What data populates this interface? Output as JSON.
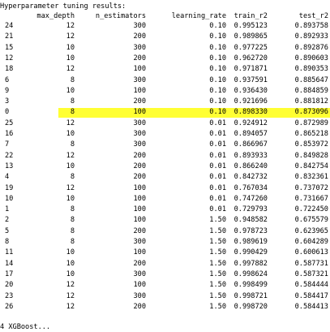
{
  "title": "Hyperparameter tuning results:",
  "columns": [
    "max_depth",
    "n_estimators",
    "learning_rate",
    "train_r2",
    "test_r2"
  ],
  "highlight_index": "0",
  "rows": [
    [
      "24",
      "12",
      "300",
      "0.10",
      "0.995123",
      "0.893758"
    ],
    [
      "21",
      "12",
      "200",
      "0.10",
      "0.989865",
      "0.892933"
    ],
    [
      "15",
      "10",
      "300",
      "0.10",
      "0.977225",
      "0.892876"
    ],
    [
      "12",
      "10",
      "200",
      "0.10",
      "0.962720",
      "0.890603"
    ],
    [
      "18",
      "12",
      "100",
      "0.10",
      "0.971871",
      "0.890353"
    ],
    [
      "6",
      "8",
      "300",
      "0.10",
      "0.937591",
      "0.885647"
    ],
    [
      "9",
      "10",
      "100",
      "0.10",
      "0.936430",
      "0.884859"
    ],
    [
      "3",
      "8",
      "200",
      "0.10",
      "0.921696",
      "0.881812"
    ],
    [
      "0",
      "8",
      "100",
      "0.10",
      "0.898330",
      "0.873096"
    ],
    [
      "25",
      "12",
      "300",
      "0.01",
      "0.924912",
      "0.872989"
    ],
    [
      "16",
      "10",
      "300",
      "0.01",
      "0.894057",
      "0.865218"
    ],
    [
      "7",
      "8",
      "300",
      "0.01",
      "0.866967",
      "0.853972"
    ],
    [
      "22",
      "12",
      "200",
      "0.01",
      "0.893933",
      "0.849828"
    ],
    [
      "13",
      "10",
      "200",
      "0.01",
      "0.866240",
      "0.842754"
    ],
    [
      "4",
      "8",
      "200",
      "0.01",
      "0.842732",
      "0.832361"
    ],
    [
      "19",
      "12",
      "100",
      "0.01",
      "0.767034",
      "0.737072"
    ],
    [
      "10",
      "10",
      "100",
      "0.01",
      "0.747260",
      "0.731667"
    ],
    [
      "1",
      "8",
      "100",
      "0.01",
      "0.729793",
      "0.722450"
    ],
    [
      "2",
      "8",
      "100",
      "1.50",
      "0.948582",
      "0.675579"
    ],
    [
      "5",
      "8",
      "200",
      "1.50",
      "0.978723",
      "0.623965"
    ],
    [
      "8",
      "8",
      "300",
      "1.50",
      "0.989619",
      "0.604289"
    ],
    [
      "11",
      "10",
      "100",
      "1.50",
      "0.990429",
      "0.600613"
    ],
    [
      "14",
      "10",
      "200",
      "1.50",
      "0.997882",
      "0.587731"
    ],
    [
      "17",
      "10",
      "300",
      "1.50",
      "0.998624",
      "0.587321"
    ],
    [
      "20",
      "12",
      "100",
      "1.50",
      "0.998499",
      "0.584444"
    ],
    [
      "23",
      "12",
      "300",
      "1.50",
      "0.998721",
      "0.584417"
    ],
    [
      "26",
      "12",
      "200",
      "1.50",
      "0.998720",
      "0.584413"
    ]
  ],
  "footer": "4 XGBoost..."
}
